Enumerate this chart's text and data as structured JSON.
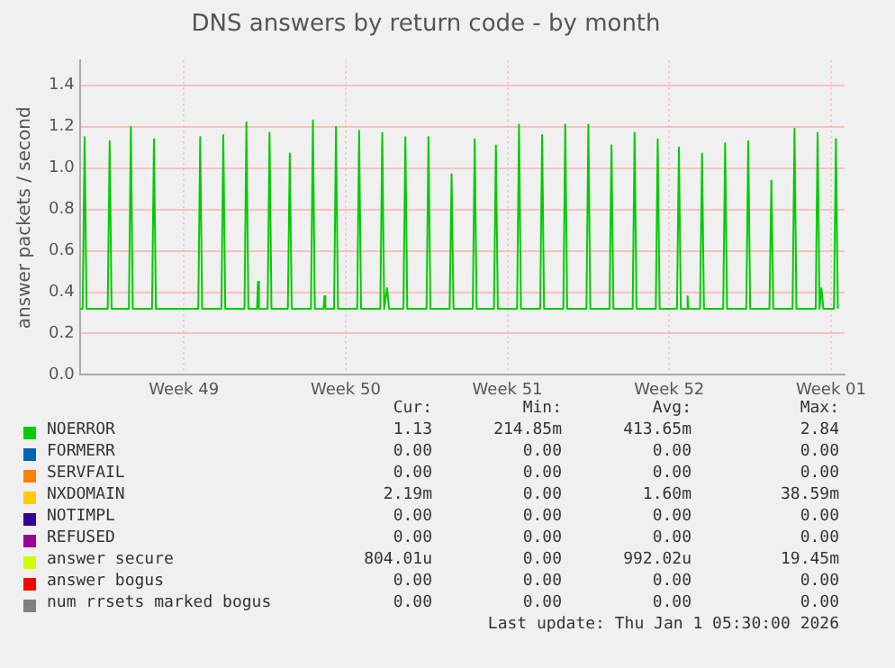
{
  "chart_data": {
    "type": "line",
    "title": "DNS answers by return code - by month",
    "ylabel": "answer packets / second",
    "x": [
      "--11-28T00:00",
      "--11-28T03:00",
      "--11-28T05:00",
      "--11-28T07:00",
      "--11-29T05:00",
      "--11-29T07:00",
      "--11-29T09:00",
      "--11-30T03:00",
      "--11-30T05:00",
      "--11-30T07:00",
      "--12-01T03:00",
      "--12-01T05:00",
      "--12-01T07:00",
      "--12-03T03:00",
      "--12-03T05:00",
      "--12-03T07:00",
      "--12-04T03:00",
      "--12-04T05:00",
      "--12-04T07:00",
      "--12-05T03:00",
      "--12-05T05:00",
      "--12-05T07:00",
      "--12-05T16:00",
      "--12-05T17:00",
      "--12-05T18:00",
      "--12-06T03:00",
      "--12-06T05:00",
      "--12-06T07:00",
      "--12-07T00:00",
      "--12-07T02:00",
      "--12-07T04:00",
      "--12-08T00:00",
      "--12-08T02:00",
      "--12-08T04:00",
      "--12-08T13:00",
      "--12-08T14:00",
      "--12-08T15:00",
      "--12-09T00:00",
      "--12-09T02:00",
      "--12-09T04:00",
      "--12-10T00:00",
      "--12-10T02:00",
      "--12-10T04:00",
      "--12-11T00:00",
      "--12-11T02:00",
      "--12-11T04:00",
      "--12-11T07:00",
      "--12-11T09:00",
      "--12-12T00:00",
      "--12-12T02:00",
      "--12-12T04:00",
      "--12-13T00:00",
      "--12-13T02:00",
      "--12-13T04:00",
      "--12-14T00:00",
      "--12-14T02:00",
      "--12-14T04:00",
      "--12-15T00:00",
      "--12-15T02:00",
      "--12-15T04:00",
      "--12-15T22:00",
      "--12-16T00:00",
      "--12-16T02:00",
      "--12-16T22:00",
      "--12-17T00:00",
      "--12-17T02:00",
      "--12-17T22:00",
      "--12-18T00:00",
      "--12-18T02:00",
      "--12-18T22:00",
      "--12-19T00:00",
      "--12-19T02:00",
      "--12-19T22:00",
      "--12-20T00:00",
      "--12-20T02:00",
      "--12-20T22:00",
      "--12-21T00:00",
      "--12-21T02:00",
      "--12-21T22:00",
      "--12-22T00:00",
      "--12-22T02:00",
      "--12-22T22:00",
      "--12-23T00:00",
      "--12-23T02:00",
      "--12-23T20:00",
      "--12-23T22:00",
      "--12-24T00:00",
      "--12-24T06:00",
      "--12-24T07:00",
      "--12-24T08:00",
      "--12-24T20:00",
      "--12-24T22:00",
      "--12-25T00:00",
      "--12-25T20:00",
      "--12-25T22:00",
      "--12-26T00:00",
      "--12-26T20:00",
      "--12-26T22:00",
      "--12-27T00:00",
      "--12-27T20:00",
      "--12-27T22:00",
      "--12-28T00:00",
      "--12-28T20:00",
      "--12-28T22:00",
      "--12-29T00:00",
      "--12-29T20:00",
      "--12-29T22:00",
      "--12-30T00:00",
      "--12-30T02:00",
      "--12-30T04:00",
      "--12-30T15:00",
      "--12-30T17:00",
      "--12-30T19:00"
    ],
    "series": [
      {
        "name": "NOERROR",
        "color": "#00cc00",
        "values": [
          0.32,
          0.32,
          1.15,
          0.32,
          0.32,
          1.13,
          0.32,
          0.32,
          1.2,
          0.32,
          0.32,
          1.14,
          0.32,
          0.32,
          1.15,
          0.32,
          0.32,
          1.16,
          0.32,
          0.32,
          1.22,
          0.32,
          0.32,
          0.45,
          0.32,
          0.32,
          1.17,
          0.32,
          0.32,
          1.07,
          0.32,
          0.32,
          1.23,
          0.32,
          0.32,
          0.38,
          0.32,
          0.32,
          1.2,
          0.32,
          0.32,
          1.18,
          0.32,
          0.32,
          1.17,
          0.32,
          0.42,
          0.32,
          0.32,
          1.15,
          0.32,
          0.32,
          1.15,
          0.32,
          0.32,
          0.97,
          0.32,
          0.32,
          1.14,
          0.32,
          0.32,
          1.11,
          0.32,
          0.32,
          1.21,
          0.32,
          0.32,
          1.16,
          0.32,
          0.32,
          1.21,
          0.32,
          0.32,
          1.21,
          0.32,
          0.32,
          1.11,
          0.32,
          0.32,
          1.17,
          0.32,
          0.32,
          1.14,
          0.32,
          0.32,
          1.1,
          0.32,
          0.32,
          0.38,
          0.32,
          0.32,
          1.07,
          0.32,
          0.32,
          1.12,
          0.32,
          0.32,
          1.13,
          0.32,
          0.32,
          0.94,
          0.32,
          0.32,
          1.19,
          0.32,
          0.32,
          1.17,
          0.32,
          0.42,
          0.32,
          0.32,
          1.14,
          0.32
        ]
      },
      {
        "name": "FORMERR",
        "color": "#0066b3",
        "values": [
          null,
          null,
          null,
          null,
          null,
          null,
          null,
          null,
          null,
          null,
          null,
          null,
          null,
          null,
          null,
          null,
          null,
          null,
          null,
          null,
          null,
          null,
          null,
          null,
          null,
          null,
          null,
          null,
          null,
          null,
          null,
          null,
          null,
          null,
          null,
          null,
          null,
          null,
          null,
          null,
          null,
          null,
          null,
          null,
          null,
          null,
          null,
          null,
          null,
          null,
          null,
          null,
          null,
          null,
          null,
          null,
          null,
          null,
          null,
          null,
          null,
          null,
          null,
          null,
          null,
          null,
          null,
          null,
          null,
          null,
          null,
          null,
          null,
          null,
          null,
          null,
          null,
          null,
          null,
          null,
          null,
          null,
          null,
          null,
          null,
          null,
          null,
          null,
          null,
          null,
          null,
          null,
          null,
          null,
          null,
          null,
          null,
          null,
          null,
          null,
          null,
          null,
          null,
          null,
          null,
          null,
          null,
          null,
          null,
          null,
          null,
          null,
          null
        ]
      },
      {
        "name": "SERVFAIL",
        "color": "#ff8000",
        "values": [
          null,
          null,
          null,
          null,
          null,
          null,
          null,
          null,
          null,
          null,
          null,
          null,
          null,
          null,
          null,
          null,
          null,
          null,
          null,
          null,
          null,
          null,
          null,
          null,
          null,
          null,
          null,
          null,
          null,
          null,
          null,
          null,
          null,
          null,
          null,
          null,
          null,
          null,
          null,
          null,
          null,
          null,
          null,
          null,
          null,
          null,
          null,
          null,
          null,
          null,
          null,
          null,
          null,
          null,
          null,
          null,
          null,
          null,
          null,
          null,
          null,
          null,
          null,
          null,
          null,
          null,
          null,
          null,
          null,
          null,
          null,
          null,
          null,
          null,
          null,
          null,
          null,
          null,
          null,
          null,
          null,
          null,
          null,
          null,
          null,
          null,
          null,
          null,
          null,
          null,
          null,
          null,
          null,
          null,
          null,
          null,
          null,
          null,
          null,
          null,
          null,
          null,
          null,
          null,
          null,
          null,
          null,
          null,
          null,
          null,
          null,
          null,
          null
        ]
      },
      {
        "name": "NXDOMAIN",
        "color": "#ffcc00",
        "values": [
          null,
          null,
          null,
          null,
          null,
          null,
          null,
          null,
          null,
          null,
          null,
          null,
          null,
          null,
          null,
          null,
          null,
          null,
          null,
          null,
          null,
          null,
          null,
          null,
          null,
          null,
          null,
          null,
          null,
          null,
          null,
          null,
          null,
          null,
          null,
          null,
          null,
          null,
          null,
          null,
          null,
          null,
          null,
          null,
          null,
          null,
          null,
          null,
          null,
          null,
          null,
          null,
          null,
          null,
          null,
          null,
          null,
          null,
          null,
          null,
          null,
          null,
          null,
          null,
          null,
          null,
          null,
          null,
          null,
          null,
          null,
          null,
          null,
          null,
          null,
          null,
          null,
          null,
          null,
          null,
          null,
          null,
          null,
          null,
          null,
          null,
          null,
          null,
          null,
          null,
          null,
          null,
          null,
          null,
          null,
          null,
          null,
          null,
          null,
          null,
          null,
          null,
          null,
          null,
          null,
          null,
          null,
          null,
          null,
          null,
          null,
          null,
          null
        ]
      },
      {
        "name": "NOTIMPL",
        "color": "#330099",
        "values": [
          null,
          null,
          null,
          null,
          null,
          null,
          null,
          null,
          null,
          null,
          null,
          null,
          null,
          null,
          null,
          null,
          null,
          null,
          null,
          null,
          null,
          null,
          null,
          null,
          null,
          null,
          null,
          null,
          null,
          null,
          null,
          null,
          null,
          null,
          null,
          null,
          null,
          null,
          null,
          null,
          null,
          null,
          null,
          null,
          null,
          null,
          null,
          null,
          null,
          null,
          null,
          null,
          null,
          null,
          null,
          null,
          null,
          null,
          null,
          null,
          null,
          null,
          null,
          null,
          null,
          null,
          null,
          null,
          null,
          null,
          null,
          null,
          null,
          null,
          null,
          null,
          null,
          null,
          null,
          null,
          null,
          null,
          null,
          null,
          null,
          null,
          null,
          null,
          null,
          null,
          null,
          null,
          null,
          null,
          null,
          null,
          null,
          null,
          null,
          null,
          null,
          null,
          null,
          null,
          null,
          null,
          null,
          null,
          null,
          null,
          null,
          null,
          null
        ]
      },
      {
        "name": "REFUSED",
        "color": "#990099",
        "values": [
          null,
          null,
          null,
          null,
          null,
          null,
          null,
          null,
          null,
          null,
          null,
          null,
          null,
          null,
          null,
          null,
          null,
          null,
          null,
          null,
          null,
          null,
          null,
          null,
          null,
          null,
          null,
          null,
          null,
          null,
          null,
          null,
          null,
          null,
          null,
          null,
          null,
          null,
          null,
          null,
          null,
          null,
          null,
          null,
          null,
          null,
          null,
          null,
          null,
          null,
          null,
          null,
          null,
          null,
          null,
          null,
          null,
          null,
          null,
          null,
          null,
          null,
          null,
          null,
          null,
          null,
          null,
          null,
          null,
          null,
          null,
          null,
          null,
          null,
          null,
          null,
          null,
          null,
          null,
          null,
          null,
          null,
          null,
          null,
          null,
          null,
          null,
          null,
          null,
          null,
          null,
          null,
          null,
          null,
          null,
          null,
          null,
          null,
          null,
          null,
          null,
          null,
          null,
          null,
          null,
          null,
          null,
          null,
          null,
          null,
          null,
          null,
          null
        ]
      },
      {
        "name": "answer secure",
        "color": "#ccff00",
        "values": [
          null,
          null,
          null,
          null,
          null,
          null,
          null,
          null,
          null,
          null,
          null,
          null,
          null,
          null,
          null,
          null,
          null,
          null,
          null,
          null,
          null,
          null,
          null,
          null,
          null,
          null,
          null,
          null,
          null,
          null,
          null,
          null,
          null,
          null,
          null,
          null,
          null,
          null,
          null,
          null,
          null,
          null,
          null,
          null,
          null,
          null,
          null,
          null,
          null,
          null,
          null,
          null,
          null,
          null,
          null,
          null,
          null,
          null,
          null,
          null,
          null,
          null,
          null,
          null,
          null,
          null,
          null,
          null,
          null,
          null,
          null,
          null,
          null,
          null,
          null,
          null,
          null,
          null,
          null,
          null,
          null,
          null,
          null,
          null,
          null,
          null,
          null,
          null,
          null,
          null,
          null,
          null,
          null,
          null,
          null,
          null,
          null,
          null,
          null,
          null,
          null,
          null,
          null,
          null,
          null,
          null,
          null,
          null,
          null,
          null,
          null,
          null,
          null
        ]
      },
      {
        "name": "answer bogus",
        "color": "#ff0000",
        "values": [
          null,
          null,
          null,
          null,
          null,
          null,
          null,
          null,
          null,
          null,
          null,
          null,
          null,
          null,
          null,
          null,
          null,
          null,
          null,
          null,
          null,
          null,
          null,
          null,
          null,
          null,
          null,
          null,
          null,
          null,
          null,
          null,
          null,
          null,
          null,
          null,
          null,
          null,
          null,
          null,
          null,
          null,
          null,
          null,
          null,
          null,
          null,
          null,
          null,
          null,
          null,
          null,
          null,
          null,
          null,
          null,
          null,
          null,
          null,
          null,
          null,
          null,
          null,
          null,
          null,
          null,
          null,
          null,
          null,
          null,
          null,
          null,
          null,
          null,
          null,
          null,
          null,
          null,
          null,
          null,
          null,
          null,
          null,
          null,
          null,
          null,
          null,
          null,
          null,
          null,
          null,
          null,
          null,
          null,
          null,
          null,
          null,
          null,
          null,
          null,
          null,
          null,
          null,
          null,
          null,
          null,
          null,
          null,
          null,
          null,
          null,
          null,
          null
        ]
      },
      {
        "name": "num rrsets marked bogus",
        "color": "#808080",
        "values": [
          null,
          null,
          null,
          null,
          null,
          null,
          null,
          null,
          null,
          null,
          null,
          null,
          null,
          null,
          null,
          null,
          null,
          null,
          null,
          null,
          null,
          null,
          null,
          null,
          null,
          null,
          null,
          null,
          null,
          null,
          null,
          null,
          null,
          null,
          null,
          null,
          null,
          null,
          null,
          null,
          null,
          null,
          null,
          null,
          null,
          null,
          null,
          null,
          null,
          null,
          null,
          null,
          null,
          null,
          null,
          null,
          null,
          null,
          null,
          null,
          null,
          null,
          null,
          null,
          null,
          null,
          null,
          null,
          null,
          null,
          null,
          null,
          null,
          null,
          null,
          null,
          null,
          null,
          null,
          null,
          null,
          null,
          null,
          null,
          null,
          null,
          null,
          null,
          null,
          null,
          null,
          null,
          null,
          null,
          null,
          null,
          null,
          null,
          null,
          null,
          null,
          null,
          null,
          null,
          null,
          null,
          null,
          null,
          null,
          null,
          null,
          null,
          null
        ]
      }
    ],
    "xlim": [
      "--11-28T00:00",
      "--12-31T02:00"
    ],
    "xticks": [
      {
        "value": "--12-02T12:00",
        "label": "Week 49"
      },
      {
        "value": "--12-09T12:00",
        "label": "Week 50"
      },
      {
        "value": "--12-16T12:00",
        "label": "Week 51"
      },
      {
        "value": "--12-23T12:00",
        "label": "Week 52"
      },
      {
        "value": "--12-30T12:00",
        "label": "Week 01"
      }
    ],
    "ylim": [
      0,
      1.52
    ],
    "yticks": [
      {
        "value": 0,
        "label": "0.0"
      },
      {
        "value": 0.2,
        "label": "0.2"
      },
      {
        "value": 0.4,
        "label": "0.4"
      },
      {
        "value": 0.6,
        "label": "0.6"
      },
      {
        "value": 0.8,
        "label": "0.8"
      },
      {
        "value": 1,
        "label": "1.0"
      },
      {
        "value": 1.2,
        "label": "1.2"
      },
      {
        "value": 1.4,
        "label": "1.4"
      }
    ],
    "grid": true,
    "legend": "bottom",
    "annotations": [
      "Cur:",
      "Min:",
      "Avg:",
      "Max:",
      "1.13",
      "214.85m",
      "413.65m",
      "2.84",
      "0.00",
      "0.00",
      "0.00",
      "0.00",
      "0.00",
      "0.00",
      "0.00",
      "0.00",
      "2.19m",
      "0.00",
      "1.60m",
      "38.59m",
      "0.00",
      "0.00",
      "0.00",
      "0.00",
      "0.00",
      "0.00",
      "0.00",
      "0.00",
      "804.01u",
      "0.00",
      "992.02u",
      "19.45m",
      "0.00",
      "0.00",
      "0.00",
      "0.00",
      "0.00",
      "0.00",
      "0.00",
      "0.00",
      "Last update: Thu Jan  1 05:30:00 2026"
    ]
  }
}
